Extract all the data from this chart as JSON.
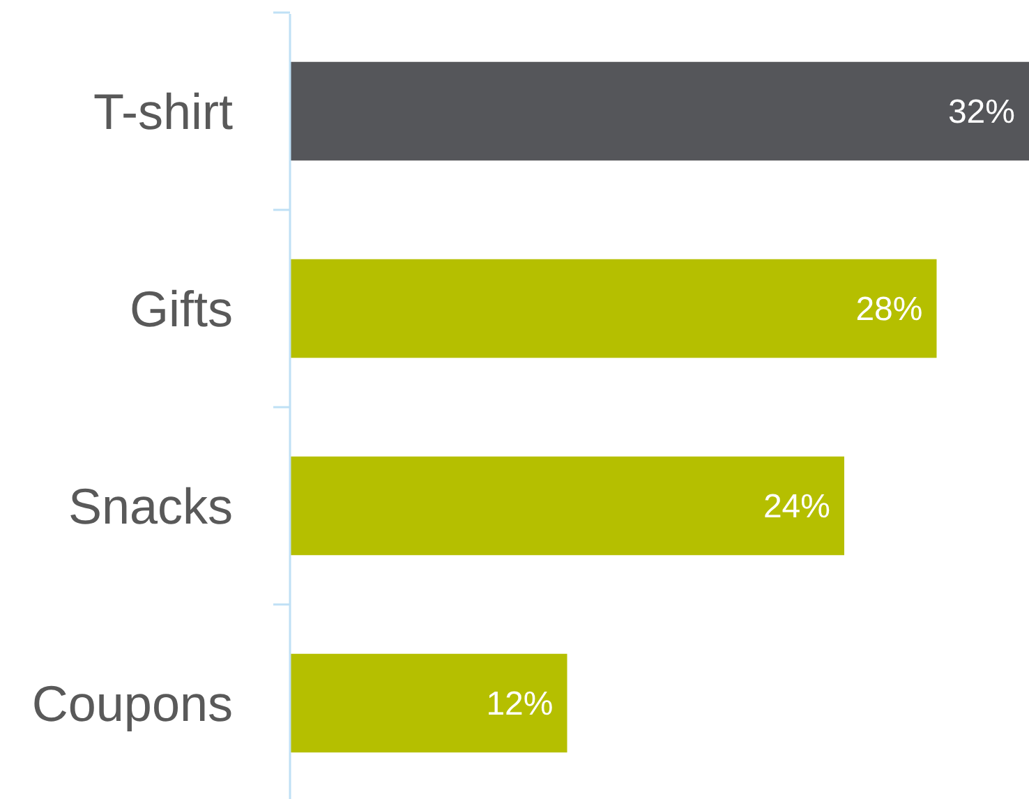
{
  "chart_data": {
    "type": "bar",
    "orientation": "horizontal",
    "categories": [
      "T-shirt",
      "Gifts",
      "Snacks",
      "Coupons"
    ],
    "values": [
      32,
      28,
      24,
      12
    ],
    "colors": [
      "#55565a",
      "#b5bf00",
      "#b5bf00",
      "#b5bf00"
    ],
    "value_labels": [
      "32%",
      "28%",
      "24%",
      "12%"
    ]
  }
}
